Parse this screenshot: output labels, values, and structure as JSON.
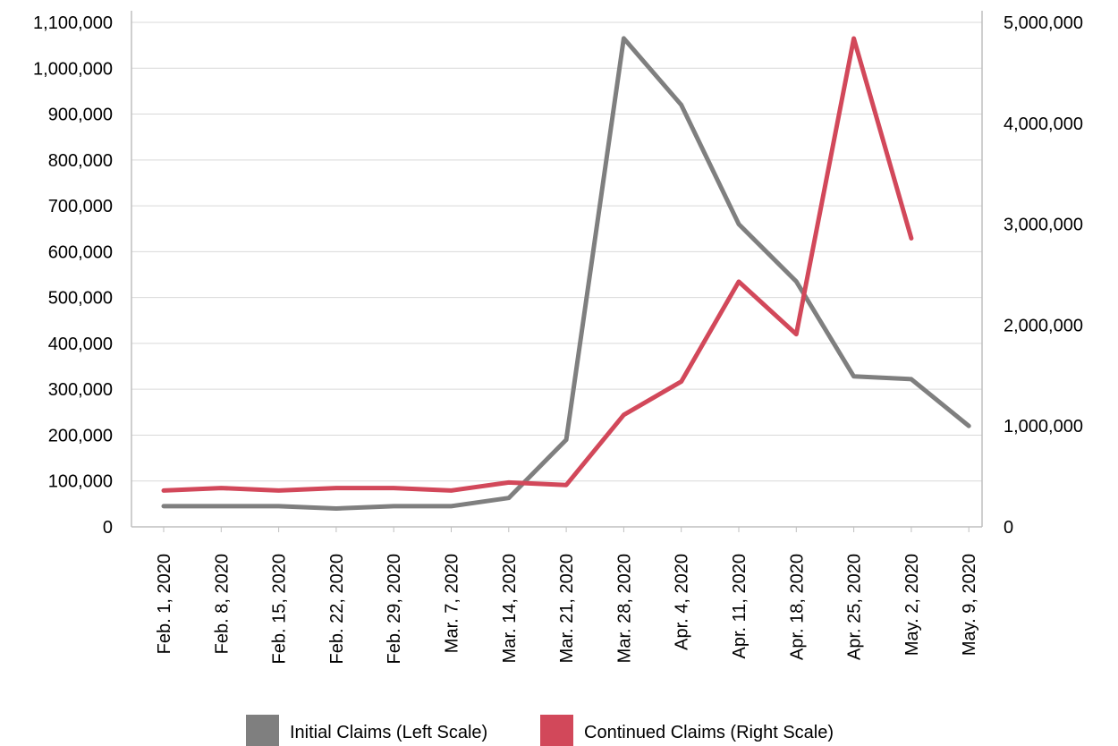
{
  "chart_data": {
    "type": "line",
    "categories": [
      "Feb. 1, 2020",
      "Feb. 8, 2020",
      "Feb. 15, 2020",
      "Feb. 22, 2020",
      "Feb. 29, 2020",
      "Mar. 7, 2020",
      "Mar. 14, 2020",
      "Mar. 21, 2020",
      "Mar. 28, 2020",
      "Apr. 4, 2020",
      "Apr. 11, 2020",
      "Apr. 18, 2020",
      "Apr. 25, 2020",
      "May. 2, 2020",
      "May. 9, 2020"
    ],
    "series": [
      {
        "name": "Initial Claims (Left Scale)",
        "axis": "left",
        "color": "#7f7f7f",
        "values": [
          45000,
          45000,
          45000,
          40000,
          45000,
          45000,
          63000,
          190000,
          1065000,
          920000,
          660000,
          535000,
          328000,
          322000,
          220000
        ]
      },
      {
        "name": "Continued Claims (Right Scale)",
        "axis": "right",
        "color": "#d2485a",
        "values": [
          360000,
          385000,
          360000,
          385000,
          385000,
          360000,
          440000,
          415000,
          1110000,
          1440000,
          2430000,
          1910000,
          4840000,
          2860000,
          null
        ]
      }
    ],
    "y_left": {
      "range": [
        0,
        1100000
      ],
      "ticks": [
        0,
        100000,
        200000,
        300000,
        400000,
        500000,
        600000,
        700000,
        800000,
        900000,
        1000000,
        1100000
      ],
      "tick_labels": [
        "0",
        "100,000",
        "200,000",
        "300,000",
        "400,000",
        "500,000",
        "600,000",
        "700,000",
        "800,000",
        "900,000",
        "1,000,000",
        "1,100,000"
      ]
    },
    "y_right": {
      "range": [
        0,
        5000000
      ],
      "ticks": [
        0,
        1000000,
        2000000,
        3000000,
        4000000,
        5000000
      ],
      "tick_labels": [
        "0",
        "1,000,000",
        "2,000,000",
        "3,000,000",
        "4,000,000",
        "5,000,000"
      ]
    },
    "grid": true,
    "legend_position": "bottom"
  }
}
